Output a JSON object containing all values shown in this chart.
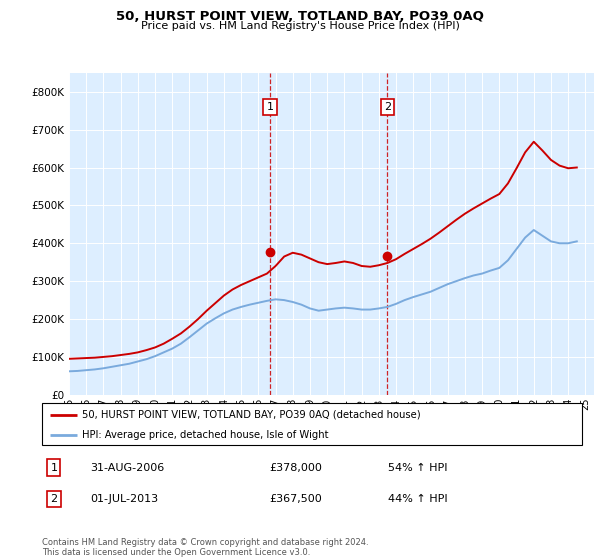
{
  "title": "50, HURST POINT VIEW, TOTLAND BAY, PO39 0AQ",
  "subtitle": "Price paid vs. HM Land Registry's House Price Index (HPI)",
  "legend_line1": "50, HURST POINT VIEW, TOTLAND BAY, PO39 0AQ (detached house)",
  "legend_line2": "HPI: Average price, detached house, Isle of Wight",
  "footnote": "Contains HM Land Registry data © Crown copyright and database right 2024.\nThis data is licensed under the Open Government Licence v3.0.",
  "sale1_label": "1",
  "sale1_date": "31-AUG-2006",
  "sale1_price": "£378,000",
  "sale1_hpi": "54% ↑ HPI",
  "sale2_label": "2",
  "sale2_date": "01-JUL-2013",
  "sale2_price": "£367,500",
  "sale2_hpi": "44% ↑ HPI",
  "hpi_color": "#7aaadd",
  "price_color": "#cc0000",
  "marker_color": "#cc0000",
  "vline_color": "#cc0000",
  "background_color": "#ddeeff",
  "ylim": [
    0,
    850000
  ],
  "yticks": [
    0,
    100000,
    200000,
    300000,
    400000,
    500000,
    600000,
    700000,
    800000
  ],
  "sale1_x": 2006.67,
  "sale1_y": 378000,
  "sale2_x": 2013.5,
  "sale2_y": 367500,
  "hpi_years": [
    1995,
    1995.5,
    1996,
    1996.5,
    1997,
    1997.5,
    1998,
    1998.5,
    1999,
    1999.5,
    2000,
    2000.5,
    2001,
    2001.5,
    2002,
    2002.5,
    2003,
    2003.5,
    2004,
    2004.5,
    2005,
    2005.5,
    2006,
    2006.5,
    2007,
    2007.5,
    2008,
    2008.5,
    2009,
    2009.5,
    2010,
    2010.5,
    2011,
    2011.5,
    2012,
    2012.5,
    2013,
    2013.5,
    2014,
    2014.5,
    2015,
    2015.5,
    2016,
    2016.5,
    2017,
    2017.5,
    2018,
    2018.5,
    2019,
    2019.5,
    2020,
    2020.5,
    2021,
    2021.5,
    2022,
    2022.5,
    2023,
    2023.5,
    2024,
    2024.5
  ],
  "hpi_values": [
    62000,
    63000,
    65000,
    67000,
    70000,
    74000,
    78000,
    82000,
    88000,
    94000,
    102000,
    112000,
    122000,
    135000,
    152000,
    170000,
    188000,
    202000,
    215000,
    225000,
    232000,
    238000,
    243000,
    248000,
    252000,
    250000,
    245000,
    238000,
    228000,
    222000,
    225000,
    228000,
    230000,
    228000,
    225000,
    225000,
    228000,
    232000,
    240000,
    250000,
    258000,
    265000,
    272000,
    282000,
    292000,
    300000,
    308000,
    315000,
    320000,
    328000,
    335000,
    355000,
    385000,
    415000,
    435000,
    420000,
    405000,
    400000,
    400000,
    405000
  ],
  "price_years": [
    1995,
    1995.5,
    1996,
    1996.5,
    1997,
    1997.5,
    1998,
    1998.5,
    1999,
    1999.5,
    2000,
    2000.5,
    2001,
    2001.5,
    2002,
    2002.5,
    2003,
    2003.5,
    2004,
    2004.5,
    2005,
    2005.5,
    2006,
    2006.5,
    2007,
    2007.5,
    2008,
    2008.5,
    2009,
    2009.5,
    2010,
    2010.5,
    2011,
    2011.5,
    2012,
    2012.5,
    2013,
    2013.5,
    2014,
    2014.5,
    2015,
    2015.5,
    2016,
    2016.5,
    2017,
    2017.5,
    2018,
    2018.5,
    2019,
    2019.5,
    2020,
    2020.5,
    2021,
    2021.5,
    2022,
    2022.5,
    2023,
    2023.5,
    2024,
    2024.5
  ],
  "price_values": [
    95000,
    96000,
    97000,
    98000,
    100000,
    102000,
    105000,
    108000,
    112000,
    118000,
    125000,
    135000,
    148000,
    162000,
    180000,
    200000,
    222000,
    242000,
    262000,
    278000,
    290000,
    300000,
    310000,
    320000,
    340000,
    365000,
    375000,
    370000,
    360000,
    350000,
    345000,
    348000,
    352000,
    348000,
    340000,
    338000,
    342000,
    348000,
    358000,
    372000,
    385000,
    398000,
    412000,
    428000,
    445000,
    462000,
    478000,
    492000,
    505000,
    518000,
    530000,
    558000,
    598000,
    640000,
    668000,
    645000,
    620000,
    605000,
    598000,
    600000
  ],
  "xlim": [
    1995,
    2025.5
  ],
  "xtick_years": [
    1995,
    1996,
    1997,
    1998,
    1999,
    2000,
    2001,
    2002,
    2003,
    2004,
    2005,
    2006,
    2007,
    2008,
    2009,
    2010,
    2011,
    2012,
    2013,
    2014,
    2015,
    2016,
    2017,
    2018,
    2019,
    2020,
    2021,
    2022,
    2023,
    2024,
    2025
  ]
}
